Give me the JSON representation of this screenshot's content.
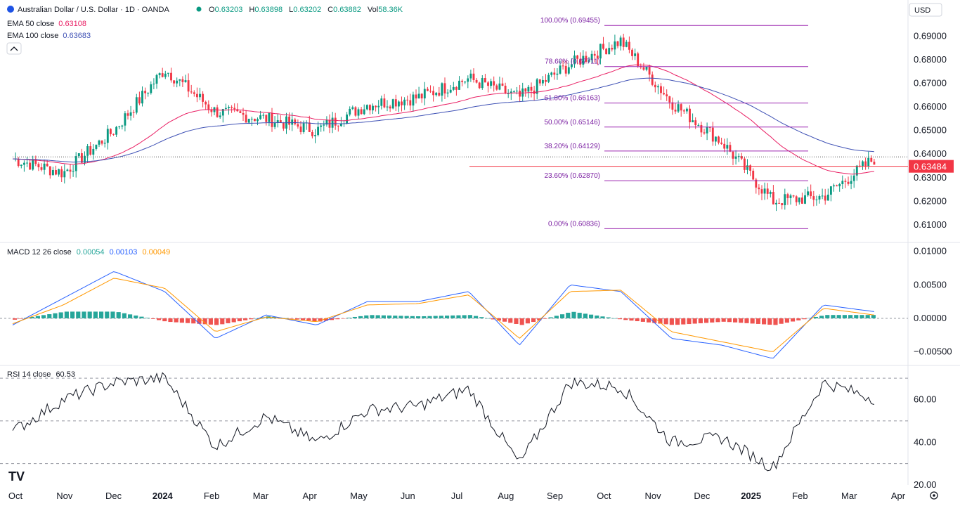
{
  "header": {
    "symbol_title": "Australian Dollar / U.S. Dollar · 1D · OANDA",
    "open_label": "O",
    "open": "0.63203",
    "high_label": "H",
    "high": "0.63898",
    "low_label": "L",
    "low": "0.63202",
    "close_label": "C",
    "close": "0.63882",
    "vol_label": "Vol",
    "vol": "58.36K",
    "currency": "USD",
    "ema50_label": "EMA 50 close",
    "ema50_value": "0.63108",
    "ema100_label": "EMA 100 close",
    "ema100_value": "0.63683",
    "collapse_icon": "chevron-up-icon",
    "price_badge": "0.63484"
  },
  "colors": {
    "up": "#089981",
    "down": "#f23645",
    "ema50": "#e91e63",
    "ema100": "#3f51b5",
    "fib": "#9c27b0",
    "macd": "#2962ff",
    "signal": "#ff9800",
    "rsi": "#131722",
    "badge": "#f23645"
  },
  "price_axis": [
    "0.69000",
    "0.68000",
    "0.67000",
    "0.66000",
    "0.65000",
    "0.64000",
    "0.63000",
    "0.62000",
    "0.61000"
  ],
  "macd_axis": [
    "0.01000",
    "0.00500",
    "0.00000",
    "−0.00500"
  ],
  "rsi_axis": [
    "60.00",
    "40.00",
    "20.00"
  ],
  "time_axis": [
    "Oct",
    "Nov",
    "Dec",
    "2024",
    "Feb",
    "Mar",
    "Apr",
    "May",
    "Jun",
    "Jul",
    "Aug",
    "Sep",
    "Oct",
    "Nov",
    "Dec",
    "2025",
    "Feb",
    "Mar",
    "Apr"
  ],
  "macd": {
    "label": "MACD 12 26 close",
    "hist": "0.00054",
    "macd": "0.00103",
    "signal": "0.00049"
  },
  "rsi": {
    "label": "RSI 14 close",
    "value": "60.53"
  },
  "fib_levels": [
    {
      "label": "100.00% (0.69455)",
      "price": 0.69455
    },
    {
      "label": "78.60% (0.67711)",
      "price": 0.67711
    },
    {
      "label": "61.80% (0.66163)",
      "price": 0.66163
    },
    {
      "label": "50.00% (0.65146)",
      "price": 0.65146
    },
    {
      "label": "38.20% (0.64129)",
      "price": 0.64129
    },
    {
      "label": "23.60% (0.62870)",
      "price": 0.6287
    },
    {
      "label": "0.00% (0.60836)",
      "price": 0.60836
    }
  ],
  "chart_data": {
    "type": "line",
    "series_kind": "candlestick",
    "ylim": [
      0.604,
      0.697
    ],
    "x": [
      "2023-10",
      "2023-11",
      "2023-12",
      "2024-01",
      "2024-02",
      "2024-03",
      "2024-04",
      "2024-05",
      "2024-06",
      "2024-07",
      "2024-08",
      "2024-09",
      "2024-10",
      "2024-11",
      "2024-12",
      "2025-01",
      "2025-02",
      "2025-03"
    ],
    "series": [
      {
        "values": [
          0.638,
          0.632,
          0.65,
          0.676,
          0.658,
          0.655,
          0.65,
          0.661,
          0.664,
          0.672,
          0.664,
          0.678,
          0.688,
          0.662,
          0.645,
          0.62,
          0.622,
          0.638
        ]
      }
    ],
    "horizontal_levels": [
      0.6348,
      0.6388
    ],
    "macd_ylim": [
      -0.0065,
      0.011
    ],
    "macd_line": [
      -0.001,
      0.003,
      0.007,
      0.004,
      -0.003,
      0.0005,
      -0.001,
      0.0025,
      0.0025,
      0.004,
      -0.004,
      0.005,
      0.004,
      -0.003,
      -0.004,
      -0.006,
      0.002,
      0.001
    ],
    "signal_line": [
      -0.0008,
      0.002,
      0.006,
      0.0045,
      -0.002,
      0.0002,
      -0.0005,
      0.002,
      0.0022,
      0.0035,
      -0.003,
      0.004,
      0.0042,
      -0.002,
      -0.0035,
      -0.005,
      0.0015,
      0.0005
    ],
    "rsi_ylim": [
      20,
      75
    ],
    "rsi_levels": [
      30,
      50,
      70
    ],
    "rsi_values": [
      45,
      60,
      68,
      70,
      38,
      52,
      40,
      55,
      57,
      65,
      30,
      68,
      66,
      40,
      42,
      28,
      68,
      60.53
    ]
  }
}
